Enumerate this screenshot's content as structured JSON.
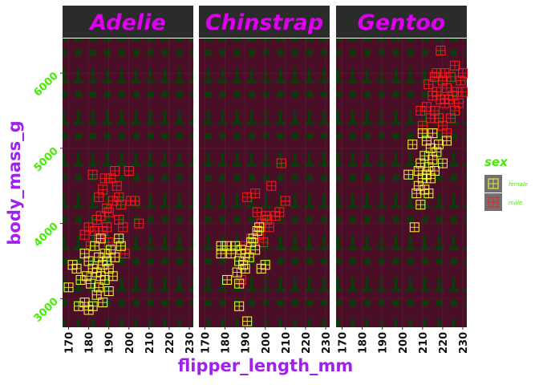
{
  "chart_data": {
    "type": "scatter",
    "facet_by": "species",
    "facets": [
      "Adelie",
      "Chinstrap",
      "Gentoo"
    ],
    "xlabel": "flipper_length_mm",
    "ylabel": "body_mass_g",
    "xlim": [
      167,
      232
    ],
    "ylim": [
      2620,
      6460
    ],
    "x_ticks": [
      170,
      180,
      190,
      200,
      210,
      220,
      230
    ],
    "y_ticks": [
      3000,
      4000,
      5000,
      6000
    ],
    "legend": {
      "title": "sex",
      "position": "right",
      "entries": [
        {
          "label": "female",
          "color": "#ffff33"
        },
        {
          "label": "male",
          "color": "#ff1a1a"
        }
      ]
    },
    "colors": {
      "panel_background": "#4a0f26",
      "pattern": "#0d3a0d",
      "strip_background": "#2b2b2b",
      "strip_text": "#dd00ee",
      "axis_title": "#a020f0",
      "y_tick_text": "#44ee00",
      "x_tick_text": "#111111",
      "legend_title": "#44ee00",
      "legend_text": "#44ee00",
      "legend_key_background": "#707070"
    },
    "series": [
      {
        "name": "female",
        "color": "#ffff33",
        "points": [
          {
            "facet": "Adelie",
            "x": 170,
            "y": 3150
          },
          {
            "facet": "Adelie",
            "x": 172,
            "y": 3450
          },
          {
            "facet": "Adelie",
            "x": 174,
            "y": 3400
          },
          {
            "facet": "Adelie",
            "x": 175,
            "y": 2900
          },
          {
            "facet": "Adelie",
            "x": 176,
            "y": 3250
          },
          {
            "facet": "Adelie",
            "x": 178,
            "y": 3600
          },
          {
            "facet": "Adelie",
            "x": 178,
            "y": 2950
          },
          {
            "facet": "Adelie",
            "x": 179,
            "y": 3300
          },
          {
            "facet": "Adelie",
            "x": 180,
            "y": 3500
          },
          {
            "facet": "Adelie",
            "x": 180,
            "y": 2850
          },
          {
            "facet": "Adelie",
            "x": 181,
            "y": 3200
          },
          {
            "facet": "Adelie",
            "x": 182,
            "y": 3400
          },
          {
            "facet": "Adelie",
            "x": 182,
            "y": 2900
          },
          {
            "facet": "Adelie",
            "x": 183,
            "y": 3700
          },
          {
            "facet": "Adelie",
            "x": 184,
            "y": 3350
          },
          {
            "facet": "Adelie",
            "x": 184,
            "y": 3050
          },
          {
            "facet": "Adelie",
            "x": 185,
            "y": 3550
          },
          {
            "facet": "Adelie",
            "x": 185,
            "y": 3150
          },
          {
            "facet": "Adelie",
            "x": 186,
            "y": 3800
          },
          {
            "facet": "Adelie",
            "x": 186,
            "y": 3300
          },
          {
            "facet": "Adelie",
            "x": 187,
            "y": 3450
          },
          {
            "facet": "Adelie",
            "x": 187,
            "y": 2950
          },
          {
            "facet": "Adelie",
            "x": 188,
            "y": 3600
          },
          {
            "facet": "Adelie",
            "x": 188,
            "y": 3250
          },
          {
            "facet": "Adelie",
            "x": 189,
            "y": 3500
          },
          {
            "facet": "Adelie",
            "x": 190,
            "y": 3400
          },
          {
            "facet": "Adelie",
            "x": 190,
            "y": 3100
          },
          {
            "facet": "Adelie",
            "x": 191,
            "y": 3650
          },
          {
            "facet": "Adelie",
            "x": 192,
            "y": 3300
          },
          {
            "facet": "Adelie",
            "x": 193,
            "y": 3550
          },
          {
            "facet": "Adelie",
            "x": 195,
            "y": 3800
          },
          {
            "facet": "Adelie",
            "x": 196,
            "y": 3700
          },
          {
            "facet": "Chinstrap",
            "x": 178,
            "y": 3700
          },
          {
            "facet": "Chinstrap",
            "x": 178,
            "y": 3600
          },
          {
            "facet": "Chinstrap",
            "x": 181,
            "y": 3250
          },
          {
            "facet": "Chinstrap",
            "x": 181,
            "y": 3700
          },
          {
            "facet": "Chinstrap",
            "x": 183,
            "y": 3600
          },
          {
            "facet": "Chinstrap",
            "x": 185,
            "y": 3700
          },
          {
            "facet": "Chinstrap",
            "x": 186,
            "y": 3350
          },
          {
            "facet": "Chinstrap",
            "x": 187,
            "y": 3200
          },
          {
            "facet": "Chinstrap",
            "x": 187,
            "y": 2900
          },
          {
            "facet": "Chinstrap",
            "x": 187,
            "y": 3500
          },
          {
            "facet": "Chinstrap",
            "x": 188,
            "y": 3650
          },
          {
            "facet": "Chinstrap",
            "x": 189,
            "y": 3450
          },
          {
            "facet": "Chinstrap",
            "x": 190,
            "y": 3600
          },
          {
            "facet": "Chinstrap",
            "x": 190,
            "y": 3400
          },
          {
            "facet": "Chinstrap",
            "x": 191,
            "y": 2700
          },
          {
            "facet": "Chinstrap",
            "x": 192,
            "y": 3550
          },
          {
            "facet": "Chinstrap",
            "x": 193,
            "y": 3750
          },
          {
            "facet": "Chinstrap",
            "x": 194,
            "y": 3800
          },
          {
            "facet": "Chinstrap",
            "x": 195,
            "y": 3650
          },
          {
            "facet": "Chinstrap",
            "x": 196,
            "y": 3900
          },
          {
            "facet": "Chinstrap",
            "x": 197,
            "y": 3950
          },
          {
            "facet": "Chinstrap",
            "x": 198,
            "y": 3400
          },
          {
            "facet": "Chinstrap",
            "x": 200,
            "y": 3450
          },
          {
            "facet": "Gentoo",
            "x": 203,
            "y": 4650
          },
          {
            "facet": "Gentoo",
            "x": 205,
            "y": 5050
          },
          {
            "facet": "Gentoo",
            "x": 206,
            "y": 3950
          },
          {
            "facet": "Gentoo",
            "x": 207,
            "y": 4400
          },
          {
            "facet": "Gentoo",
            "x": 208,
            "y": 4500
          },
          {
            "facet": "Gentoo",
            "x": 208,
            "y": 4700
          },
          {
            "facet": "Gentoo",
            "x": 209,
            "y": 4800
          },
          {
            "facet": "Gentoo",
            "x": 209,
            "y": 4250
          },
          {
            "facet": "Gentoo",
            "x": 210,
            "y": 4600
          },
          {
            "facet": "Gentoo",
            "x": 210,
            "y": 5200
          },
          {
            "facet": "Gentoo",
            "x": 211,
            "y": 4450
          },
          {
            "facet": "Gentoo",
            "x": 211,
            "y": 4900
          },
          {
            "facet": "Gentoo",
            "x": 212,
            "y": 4650
          },
          {
            "facet": "Gentoo",
            "x": 212,
            "y": 5100
          },
          {
            "facet": "Gentoo",
            "x": 213,
            "y": 4750
          },
          {
            "facet": "Gentoo",
            "x": 213,
            "y": 4400
          },
          {
            "facet": "Gentoo",
            "x": 214,
            "y": 5000
          },
          {
            "facet": "Gentoo",
            "x": 214,
            "y": 4600
          },
          {
            "facet": "Gentoo",
            "x": 215,
            "y": 4850
          },
          {
            "facet": "Gentoo",
            "x": 215,
            "y": 5200
          },
          {
            "facet": "Gentoo",
            "x": 216,
            "y": 4700
          },
          {
            "facet": "Gentoo",
            "x": 217,
            "y": 4950
          },
          {
            "facet": "Gentoo",
            "x": 218,
            "y": 5050
          },
          {
            "facet": "Gentoo",
            "x": 220,
            "y": 4800
          },
          {
            "facet": "Gentoo",
            "x": 222,
            "y": 5100
          }
        ]
      },
      {
        "name": "male",
        "color": "#ff1a1a",
        "points": [
          {
            "facet": "Adelie",
            "x": 178,
            "y": 3850
          },
          {
            "facet": "Adelie",
            "x": 180,
            "y": 3950
          },
          {
            "facet": "Adelie",
            "x": 181,
            "y": 3700
          },
          {
            "facet": "Adelie",
            "x": 182,
            "y": 4650
          },
          {
            "facet": "Adelie",
            "x": 183,
            "y": 3900
          },
          {
            "facet": "Adelie",
            "x": 184,
            "y": 4050
          },
          {
            "facet": "Adelie",
            "x": 185,
            "y": 4350
          },
          {
            "facet": "Adelie",
            "x": 185,
            "y": 3800
          },
          {
            "facet": "Adelie",
            "x": 186,
            "y": 4100
          },
          {
            "facet": "Adelie",
            "x": 187,
            "y": 3900
          },
          {
            "facet": "Adelie",
            "x": 187,
            "y": 4450
          },
          {
            "facet": "Adelie",
            "x": 188,
            "y": 4600
          },
          {
            "facet": "Adelie",
            "x": 189,
            "y": 3950
          },
          {
            "facet": "Adelie",
            "x": 189,
            "y": 4200
          },
          {
            "facet": "Adelie",
            "x": 190,
            "y": 4150
          },
          {
            "facet": "Adelie",
            "x": 190,
            "y": 3750
          },
          {
            "facet": "Adelie",
            "x": 191,
            "y": 4600
          },
          {
            "facet": "Adelie",
            "x": 192,
            "y": 4300
          },
          {
            "facet": "Adelie",
            "x": 193,
            "y": 4700
          },
          {
            "facet": "Adelie",
            "x": 194,
            "y": 4500
          },
          {
            "facet": "Adelie",
            "x": 195,
            "y": 4050
          },
          {
            "facet": "Adelie",
            "x": 195,
            "y": 4350
          },
          {
            "facet": "Adelie",
            "x": 196,
            "y": 4250
          },
          {
            "facet": "Adelie",
            "x": 197,
            "y": 3950
          },
          {
            "facet": "Adelie",
            "x": 198,
            "y": 3600
          },
          {
            "facet": "Adelie",
            "x": 200,
            "y": 4700
          },
          {
            "facet": "Adelie",
            "x": 201,
            "y": 4300
          },
          {
            "facet": "Adelie",
            "x": 203,
            "y": 4300
          },
          {
            "facet": "Adelie",
            "x": 205,
            "y": 4000
          },
          {
            "facet": "Chinstrap",
            "x": 188,
            "y": 3250
          },
          {
            "facet": "Chinstrap",
            "x": 190,
            "y": 3700
          },
          {
            "facet": "Chinstrap",
            "x": 191,
            "y": 4350
          },
          {
            "facet": "Chinstrap",
            "x": 193,
            "y": 3800
          },
          {
            "facet": "Chinstrap",
            "x": 195,
            "y": 4400
          },
          {
            "facet": "Chinstrap",
            "x": 196,
            "y": 4150
          },
          {
            "facet": "Chinstrap",
            "x": 197,
            "y": 3850
          },
          {
            "facet": "Chinstrap",
            "x": 198,
            "y": 4000
          },
          {
            "facet": "Chinstrap",
            "x": 199,
            "y": 3750
          },
          {
            "facet": "Chinstrap",
            "x": 200,
            "y": 4100
          },
          {
            "facet": "Chinstrap",
            "x": 201,
            "y": 4050
          },
          {
            "facet": "Chinstrap",
            "x": 202,
            "y": 3950
          },
          {
            "facet": "Chinstrap",
            "x": 203,
            "y": 4500
          },
          {
            "facet": "Chinstrap",
            "x": 205,
            "y": 4100
          },
          {
            "facet": "Chinstrap",
            "x": 207,
            "y": 4150
          },
          {
            "facet": "Chinstrap",
            "x": 208,
            "y": 4800
          },
          {
            "facet": "Chinstrap",
            "x": 210,
            "y": 4300
          },
          {
            "facet": "Gentoo",
            "x": 209,
            "y": 5500
          },
          {
            "facet": "Gentoo",
            "x": 210,
            "y": 5300
          },
          {
            "facet": "Gentoo",
            "x": 212,
            "y": 5550
          },
          {
            "facet": "Gentoo",
            "x": 213,
            "y": 5850
          },
          {
            "facet": "Gentoo",
            "x": 214,
            "y": 5400
          },
          {
            "facet": "Gentoo",
            "x": 215,
            "y": 5700
          },
          {
            "facet": "Gentoo",
            "x": 215,
            "y": 5200
          },
          {
            "facet": "Gentoo",
            "x": 216,
            "y": 5950
          },
          {
            "facet": "Gentoo",
            "x": 216,
            "y": 5500
          },
          {
            "facet": "Gentoo",
            "x": 217,
            "y": 5750
          },
          {
            "facet": "Gentoo",
            "x": 217,
            "y": 6000
          },
          {
            "facet": "Gentoo",
            "x": 218,
            "y": 5400
          },
          {
            "facet": "Gentoo",
            "x": 219,
            "y": 5650
          },
          {
            "facet": "Gentoo",
            "x": 219,
            "y": 6300
          },
          {
            "facet": "Gentoo",
            "x": 220,
            "y": 5900
          },
          {
            "facet": "Gentoo",
            "x": 220,
            "y": 5300
          },
          {
            "facet": "Gentoo",
            "x": 221,
            "y": 5600
          },
          {
            "facet": "Gentoo",
            "x": 221,
            "y": 6000
          },
          {
            "facet": "Gentoo",
            "x": 222,
            "y": 5800
          },
          {
            "facet": "Gentoo",
            "x": 222,
            "y": 5200
          },
          {
            "facet": "Gentoo",
            "x": 223,
            "y": 5650
          },
          {
            "facet": "Gentoo",
            "x": 224,
            "y": 5400
          },
          {
            "facet": "Gentoo",
            "x": 224,
            "y": 5950
          },
          {
            "facet": "Gentoo",
            "x": 225,
            "y": 5700
          },
          {
            "facet": "Gentoo",
            "x": 226,
            "y": 5500
          },
          {
            "facet": "Gentoo",
            "x": 226,
            "y": 6100
          },
          {
            "facet": "Gentoo",
            "x": 227,
            "y": 5750
          },
          {
            "facet": "Gentoo",
            "x": 228,
            "y": 5600
          },
          {
            "facet": "Gentoo",
            "x": 229,
            "y": 5900
          },
          {
            "facet": "Gentoo",
            "x": 230,
            "y": 5750
          },
          {
            "facet": "Gentoo",
            "x": 230,
            "y": 6000
          }
        ]
      }
    ]
  }
}
